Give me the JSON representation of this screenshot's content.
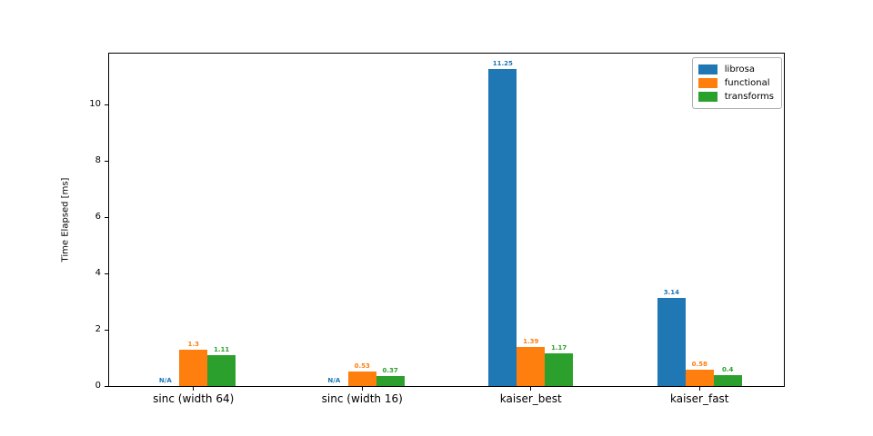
{
  "chart_data": {
    "type": "bar",
    "title": "",
    "xlabel": "",
    "ylabel": "Time Elapsed [ms]",
    "ylim": [
      0,
      11.8125
    ],
    "yticks": [
      0,
      2,
      4,
      6,
      8,
      10
    ],
    "grid": false,
    "legend_position": "upper right",
    "categories": [
      "sinc (width 64)",
      "sinc (width 16)",
      "kaiser_best",
      "kaiser_fast"
    ],
    "missing_value_label": "N/A",
    "series": [
      {
        "name": "librosa",
        "color": "#1f77b4",
        "values": [
          null,
          null,
          11.25,
          3.14
        ],
        "bar_labels": [
          "N/A",
          "N/A",
          "11.25",
          "3.14"
        ]
      },
      {
        "name": "functional",
        "color": "#ff7f0e",
        "values": [
          1.3,
          0.53,
          1.39,
          0.58
        ],
        "bar_labels": [
          "1.3",
          "0.53",
          "1.39",
          "0.58"
        ]
      },
      {
        "name": "transforms",
        "color": "#2ca02c",
        "values": [
          1.11,
          0.37,
          1.17,
          0.4
        ],
        "bar_labels": [
          "1.11",
          "0.37",
          "1.17",
          "0.4"
        ]
      }
    ]
  }
}
